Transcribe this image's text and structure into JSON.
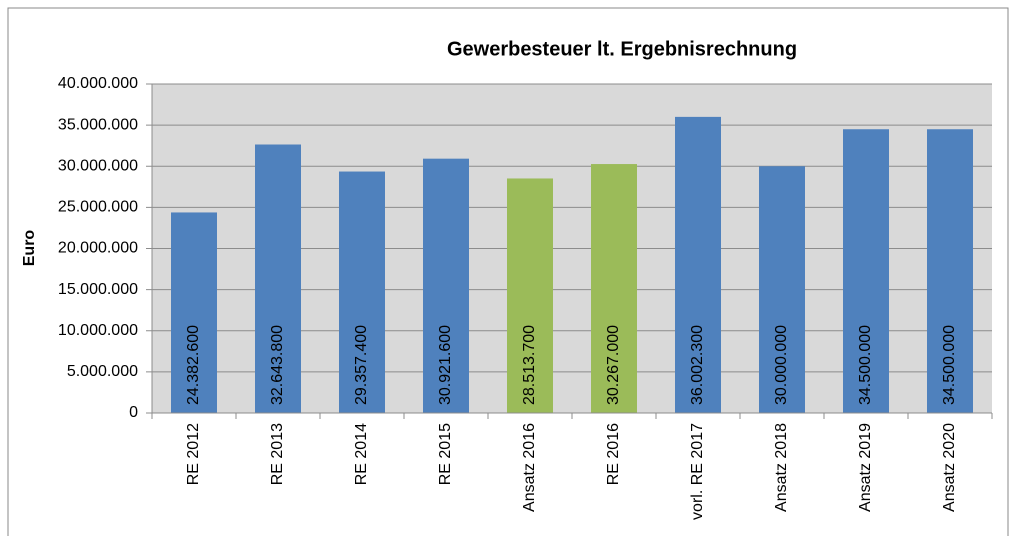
{
  "chart_data": {
    "type": "bar",
    "title": "Gewerbesteuer  lt. Ergebnisrechnung",
    "y_label": "Euro",
    "categories": [
      "RE 2012",
      "RE 2013",
      "RE 2014",
      "RE 2015",
      "Ansatz 2016",
      "RE 2016",
      "vorl. RE 2017",
      "Ansatz 2018",
      "Ansatz 2019",
      "Ansatz 2020"
    ],
    "values": [
      24382600,
      32643800,
      29357400,
      30921600,
      28513700,
      30267000,
      36002300,
      30000000,
      34500000,
      34500000
    ],
    "value_labels": [
      "24.382.600",
      "32.643.800",
      "29.357.400",
      "30.921.600",
      "28.513.700",
      "30.267.000",
      "36.002.300",
      "30.000.000",
      "34.500.000",
      "34.500.000"
    ],
    "colors": [
      "#4f81bd",
      "#4f81bd",
      "#4f81bd",
      "#4f81bd",
      "#9bbb59",
      "#9bbb59",
      "#4f81bd",
      "#4f81bd",
      "#4f81bd",
      "#4f81bd"
    ],
    "ylim": [
      0,
      40000000
    ],
    "yticks": [
      0,
      {
        "value": 5000000,
        "label": "5.000.000"
      },
      {
        "value": 10000000,
        "label": "10.000.000"
      },
      {
        "value": 15000000,
        "label": "15.000.000"
      },
      {
        "value": 20000000,
        "label": "20.000.000"
      },
      {
        "value": 25000000,
        "label": "25.000.000"
      },
      {
        "value": 30000000,
        "label": "30.000.000"
      },
      {
        "value": 35000000,
        "label": "35.000.000"
      },
      {
        "value": 40000000,
        "label": "40.000.000"
      }
    ],
    "grid": true
  }
}
